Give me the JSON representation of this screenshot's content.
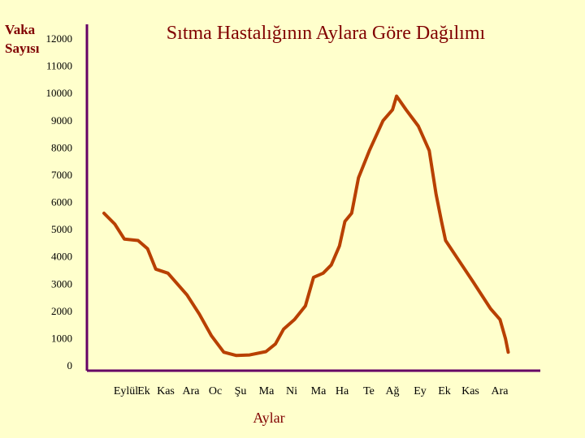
{
  "chart_data": {
    "type": "line",
    "title": "Sıtma Hastalığının Aylara Göre Dağılımı",
    "ylabel": [
      "Vaka",
      "Sayısı"
    ],
    "xlabel": "Aylar",
    "ylim": [
      0,
      12000
    ],
    "yticks": [
      0,
      1000,
      2000,
      3000,
      4000,
      5000,
      6000,
      7000,
      8000,
      9000,
      10000,
      11000,
      12000
    ],
    "categories": [
      "Eylül",
      "Ek",
      "Kas",
      "Ara",
      "Oc",
      "Şu",
      "Ma",
      "Ni",
      "Ma",
      "Ha",
      "Te",
      "Ağ",
      "Ey",
      "Ek",
      "Kas",
      "Ara"
    ],
    "grid": false,
    "legend": "none",
    "series": [
      {
        "color": "#B84000",
        "points": [
          [
            0.0,
            5600
          ],
          [
            0.4,
            5200
          ],
          [
            0.75,
            4650
          ],
          [
            1.25,
            4600
          ],
          [
            1.6,
            4300
          ],
          [
            1.9,
            3550
          ],
          [
            2.35,
            3400
          ],
          [
            3.05,
            2600
          ],
          [
            3.5,
            1900
          ],
          [
            3.95,
            1100
          ],
          [
            4.4,
            500
          ],
          [
            4.85,
            380
          ],
          [
            5.35,
            400
          ],
          [
            5.95,
            520
          ],
          [
            6.3,
            800
          ],
          [
            6.6,
            1350
          ],
          [
            7.0,
            1700
          ],
          [
            7.4,
            2200
          ],
          [
            7.7,
            3250
          ],
          [
            8.05,
            3400
          ],
          [
            8.35,
            3700
          ],
          [
            8.65,
            4400
          ],
          [
            8.85,
            5300
          ],
          [
            9.1,
            5600
          ],
          [
            9.35,
            6900
          ],
          [
            9.75,
            7900
          ],
          [
            10.25,
            9000
          ],
          [
            10.6,
            9400
          ],
          [
            10.75,
            9900
          ],
          [
            11.1,
            9400
          ],
          [
            11.55,
            8800
          ],
          [
            11.95,
            7900
          ],
          [
            12.2,
            6300
          ],
          [
            12.4,
            5300
          ],
          [
            12.55,
            4600
          ],
          [
            12.95,
            4000
          ],
          [
            13.55,
            3100
          ],
          [
            14.2,
            2100
          ],
          [
            14.55,
            1700
          ],
          [
            14.75,
            1000
          ],
          [
            14.85,
            500
          ]
        ]
      }
    ]
  }
}
